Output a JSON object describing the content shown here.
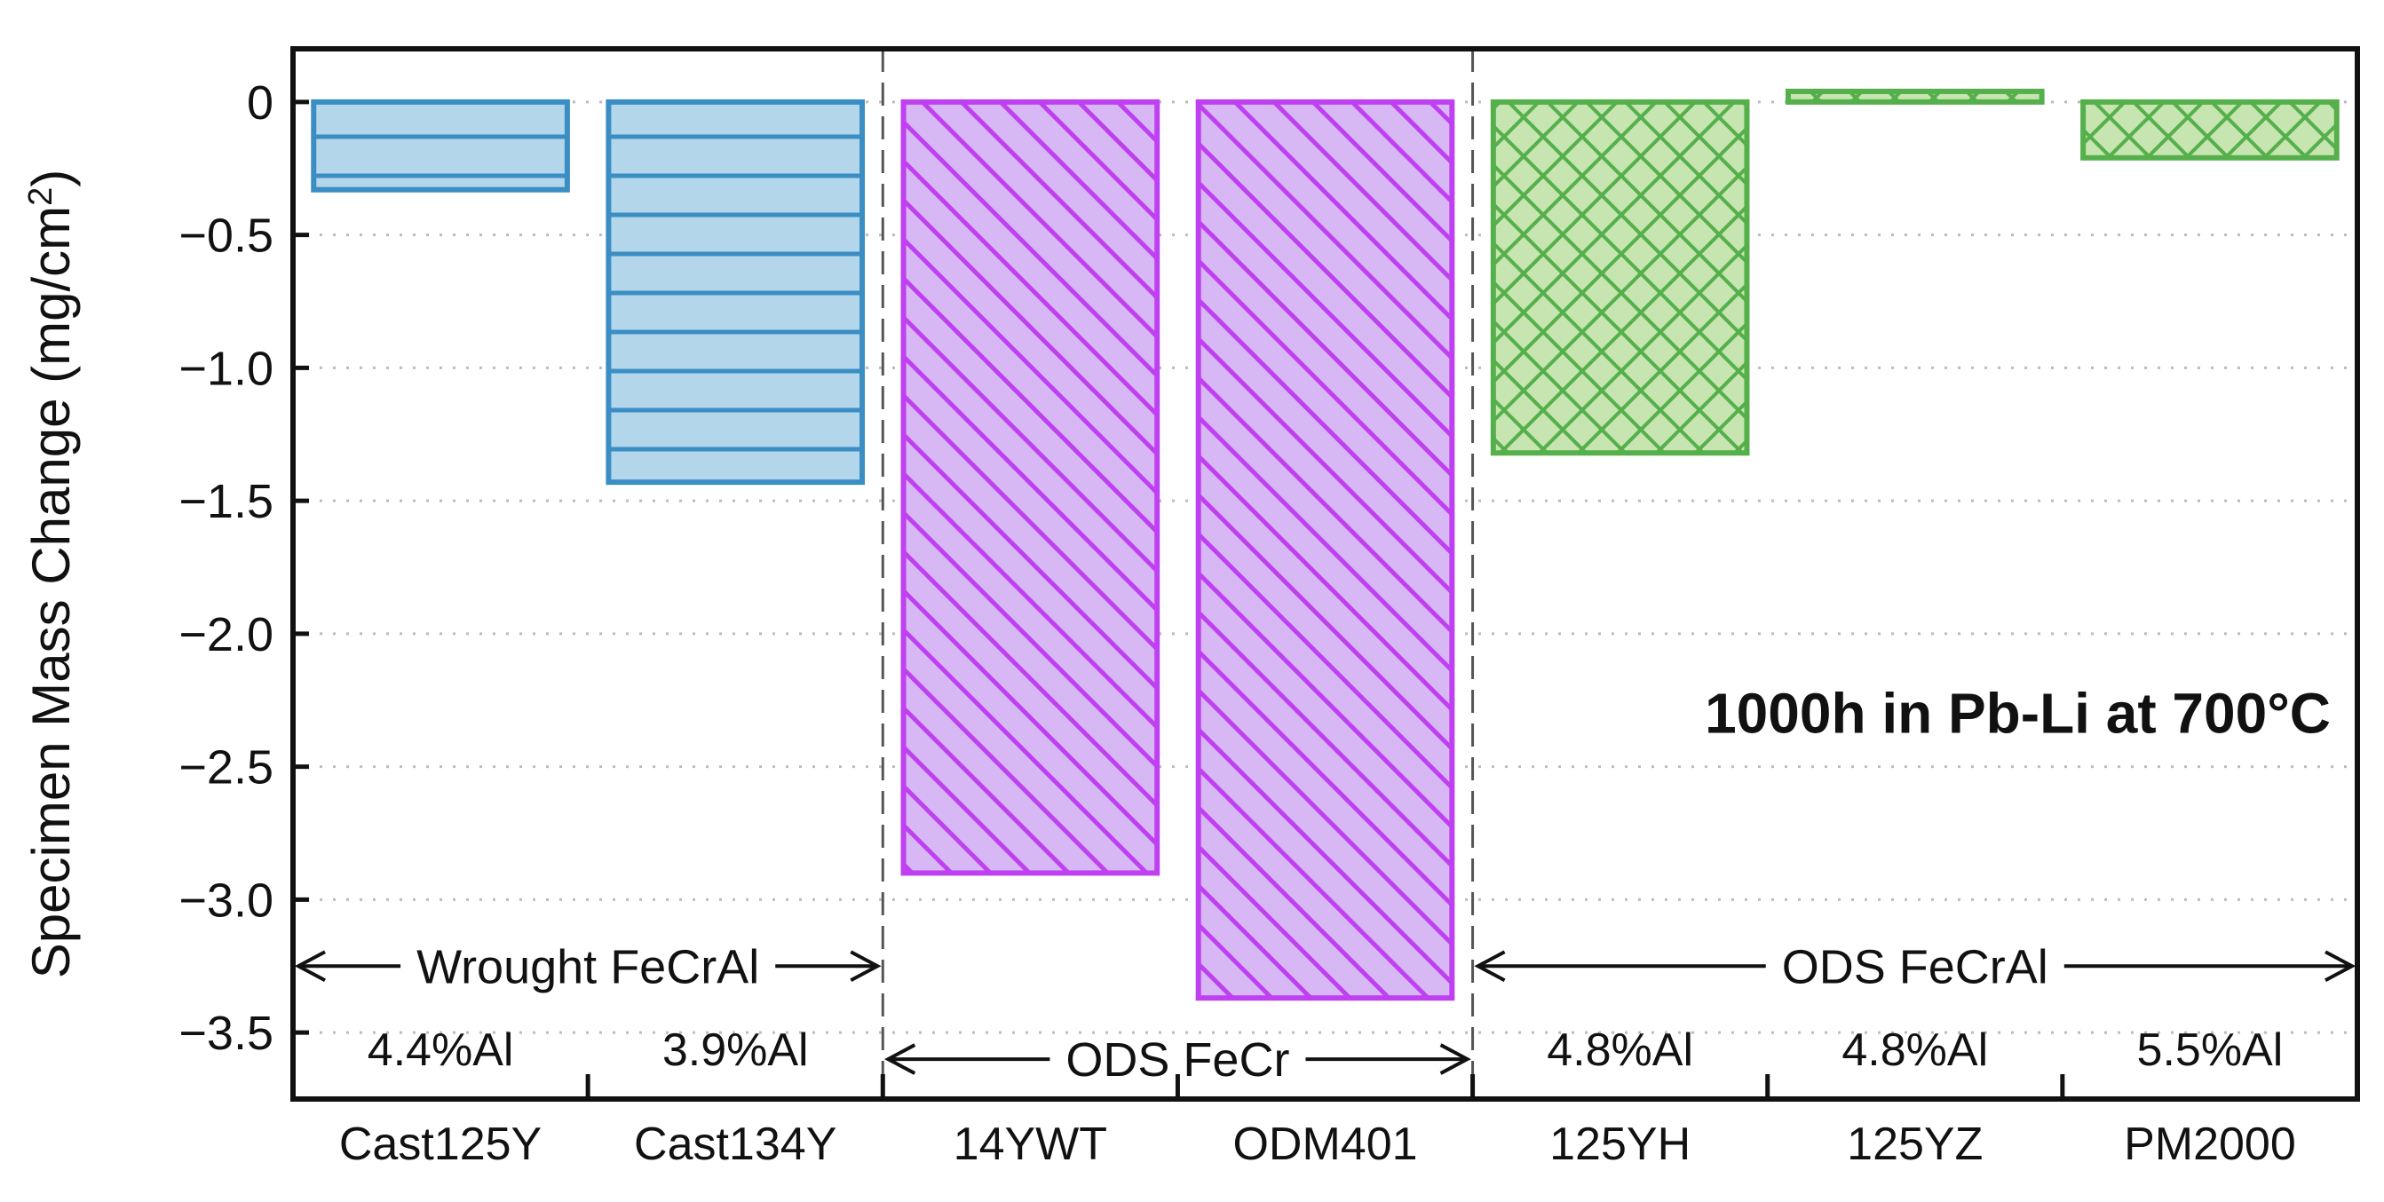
{
  "chart_data": {
    "type": "bar",
    "title": "",
    "xlabel": "",
    "ylabel_main": "Specimen Mass Change (mg/cm",
    "ylabel_sup": "2",
    "ylabel_close": ")",
    "ylim": [
      -3.75,
      0.2
    ],
    "yticks": [
      0,
      -0.5,
      -1.0,
      -1.5,
      -2.0,
      -2.5,
      -3.0,
      -3.5
    ],
    "ytick_labels": [
      "0",
      "−0.5",
      "−1.0",
      "−1.5",
      "−2.0",
      "−2.5",
      "−3.0",
      "−3.5"
    ],
    "grid": "horizontal-dotted",
    "legend": "none",
    "categories": [
      "Cast125Y",
      "Cast134Y",
      "14YWT",
      "ODM401",
      "125YH",
      "125YZ",
      "PM2000"
    ],
    "values": [
      -0.33,
      -1.43,
      -2.9,
      -3.37,
      -1.32,
      0.04,
      -0.21
    ],
    "bar_groups": [
      "wrought",
      "wrought",
      "odsfecr",
      "odsfecr",
      "odsfecral",
      "odsfecral",
      "odsfecral"
    ],
    "al_content": [
      "4.4%Al",
      "3.9%Al",
      "",
      "",
      "4.8%Al",
      "4.8%Al",
      "5.5%Al"
    ],
    "groups": [
      {
        "key": "wrought",
        "label": "Wrought FeCrAl",
        "y": -3.25,
        "from": 0,
        "to": 2,
        "pattern": "horizontal",
        "stroke": "#3b8ec4",
        "fill": "#b3d6ea"
      },
      {
        "key": "odsfecr",
        "label": "ODS FeCr",
        "y": -3.6,
        "from": 2,
        "to": 4,
        "pattern": "diagonal",
        "stroke": "#bf40f0",
        "fill": "#d8b8f4"
      },
      {
        "key": "odsfecral",
        "label": "ODS FeCrAl",
        "y": -3.25,
        "from": 4,
        "to": 7,
        "pattern": "crosshatch",
        "stroke": "#55b04c",
        "fill": "#c6e5b0"
      }
    ],
    "annotation": "1000h in Pb-Li at 700°C",
    "annotation_y": -2.3
  }
}
